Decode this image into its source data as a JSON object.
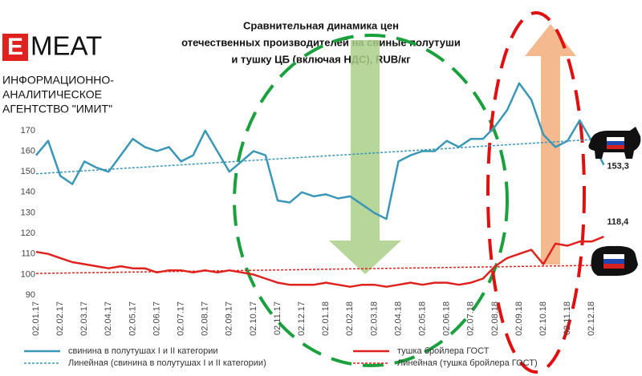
{
  "logo": {
    "letter": "E",
    "word": "MEAT",
    "lines": [
      "ИНФОРМАЦИОННО-",
      "АНАЛИТИЧЕСКОЕ",
      "АГЕНТСТВО \"ИМИТ\""
    ]
  },
  "chart_data": {
    "type": "line",
    "title": [
      "Сравнительная динамика цен",
      "отечественных производителей на свиные полутуши",
      "и тушку ЦБ (включая НДС), RUB/кг"
    ],
    "categories": [
      "02.01.17",
      null,
      "02.02.17",
      null,
      "02.03.17",
      null,
      "02.04.17",
      null,
      "02.05.17",
      null,
      "02.06.17",
      null,
      "02.07.17",
      null,
      "02.08.17",
      null,
      "02.09.17",
      null,
      "02.10.17",
      null,
      "02.11.17",
      null,
      "02.12.17",
      null,
      "02.01.18",
      null,
      "02.02.18",
      null,
      "02.03.18",
      null,
      "02.04.18",
      null,
      "02.05.18",
      null,
      "02.06.18",
      null,
      "02.07.18",
      null,
      "02.08.18",
      null,
      "02.09.18",
      null,
      "02.10.18",
      null,
      "02.11.18",
      null,
      "02.12.18",
      null
    ],
    "series": [
      {
        "name": "свинина в полутушах I и II категории",
        "color": "#3b97b8",
        "values": [
          158,
          165,
          148,
          144,
          155,
          152,
          150,
          158,
          166,
          162,
          160,
          162,
          155,
          158,
          170,
          160,
          150,
          155,
          160,
          158,
          136,
          135,
          140,
          138,
          139,
          137,
          138,
          134,
          130,
          127,
          155,
          158,
          160,
          160,
          165,
          162,
          166,
          166,
          172,
          180,
          193,
          185,
          168,
          162,
          165,
          175,
          165,
          153.3
        ],
        "value_labels": [
          null,
          null,
          null,
          null,
          null,
          null,
          null,
          null,
          null,
          null,
          null,
          null,
          null,
          null,
          null,
          null,
          null,
          null,
          null,
          null,
          null,
          null,
          null,
          null,
          null,
          null,
          null,
          null,
          null,
          null,
          null,
          null,
          null,
          null,
          null,
          null,
          null,
          null,
          null,
          null,
          null,
          null,
          null,
          null,
          null,
          null,
          null,
          "153,3"
        ]
      },
      {
        "name": "тушка бройлера ГОСТ",
        "color": "#e0211d",
        "values": [
          111,
          110,
          108,
          106,
          105,
          104,
          103,
          104,
          103,
          103,
          101,
          102,
          102,
          101,
          102,
          101,
          102,
          101,
          100,
          98,
          96,
          95,
          95,
          95,
          96,
          95,
          94,
          95,
          95,
          94,
          95,
          96,
          95,
          96,
          96,
          95,
          96,
          98,
          104,
          108,
          110,
          112,
          105,
          115,
          114,
          116,
          116,
          118.4
        ],
        "value_labels": [
          null,
          null,
          null,
          null,
          null,
          null,
          null,
          null,
          null,
          null,
          null,
          null,
          null,
          null,
          null,
          null,
          null,
          null,
          null,
          null,
          null,
          null,
          null,
          null,
          null,
          null,
          null,
          null,
          null,
          null,
          null,
          null,
          null,
          null,
          null,
          null,
          null,
          null,
          null,
          null,
          null,
          null,
          null,
          null,
          null,
          null,
          null,
          "118,4"
        ]
      }
    ],
    "trend_lines": [
      {
        "name": "Линейная (свинина в полутушах I и II категории)",
        "color": "#3b97b8",
        "values": [
          149,
          166
        ]
      },
      {
        "name": "Линейная (тушка бройлера ГОСТ)",
        "color": "#e0211d",
        "values": [
          100.5,
          104.5
        ]
      }
    ],
    "ylim": [
      90,
      200
    ],
    "yticks": [
      90,
      100,
      110,
      120,
      130,
      140,
      150,
      160,
      170
    ]
  }
}
